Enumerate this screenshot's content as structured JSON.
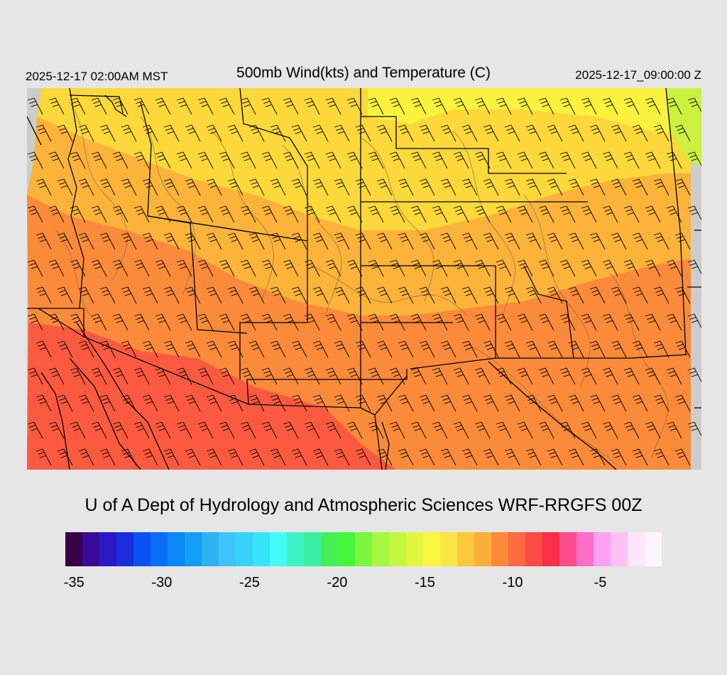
{
  "header": {
    "local_time": "2025-12-17 02:00AM MST",
    "title": "500mb Wind(kts) and Temperature (C)",
    "valid_time": "2025-12-17_09:00:00 Z"
  },
  "map": {
    "region": "Southwestern United States and northern Mexico",
    "field": "500mb temperature shaded, wind barbs overlaid",
    "colors": {
      "background": "#e6e6e6",
      "land_outside": "#cccccc",
      "boundary": "#000000",
      "terrain_contour": "#7a5a4a",
      "barb": "#000000"
    },
    "temperature_zones": [
      {
        "name": "northeast-yellow",
        "color": "#fdf23e"
      },
      {
        "name": "north-gold",
        "color": "#fcd83a"
      },
      {
        "name": "central-orange",
        "color": "#fbb33a"
      },
      {
        "name": "south-orange",
        "color": "#fb8b3a"
      },
      {
        "name": "southwest-red",
        "color": "#fc5a40"
      },
      {
        "name": "far-southwest-red",
        "color": "#fd3f48"
      },
      {
        "name": "northeast-corner-green",
        "color": "#cdf140"
      }
    ]
  },
  "credit": "U of A Dept of Hydrology and Atmospheric Sciences WRF-RRGFS 00Z",
  "colorbar": {
    "colors": [
      "#3a0046",
      "#3a0a9a",
      "#2a18c4",
      "#1a2ee0",
      "#0a52f4",
      "#0a6ef6",
      "#0a88f6",
      "#139ef6",
      "#2db2f6",
      "#3ec4fa",
      "#35d2fa",
      "#38e4fa",
      "#45fbf7",
      "#3ef4c6",
      "#38eea2",
      "#44ef55",
      "#44f63c",
      "#7bf740",
      "#a8f740",
      "#c4f740",
      "#e2f640",
      "#fbf640",
      "#fbe446",
      "#fcc83a",
      "#fcb03a",
      "#fc8a3a",
      "#fc6a40",
      "#fd4a46",
      "#fd2e4a",
      "#fd4c8e",
      "#fd6ec4",
      "#fea0f4",
      "#fec0f0",
      "#fee6fc",
      "#fef4fe"
    ],
    "labels": [
      "-35",
      "-30",
      "-25",
      "-20",
      "-15",
      "-10",
      "-5"
    ],
    "label_values": [
      -35,
      -30,
      -25,
      -20,
      -15,
      -10,
      -5
    ],
    "min": -35.5,
    "max": -1.5
  }
}
